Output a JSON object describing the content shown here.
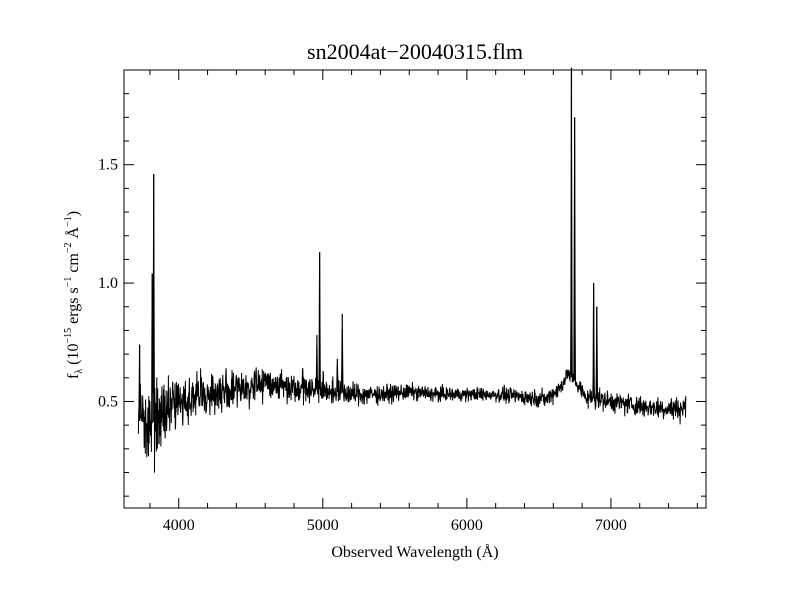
{
  "chart_data": {
    "type": "line",
    "title": "sn2004at−20040315.flm",
    "xlabel": "Observed Wavelength (Å)",
    "ylabel": {
      "prefix": "f",
      "subscript": "λ",
      "open": " (10",
      "exp1": "−15",
      "mid1": " ergs s",
      "exp2": "−1",
      "mid2": " cm",
      "exp3": "−2",
      "mid3": " Å",
      "exp4": "−1",
      "close": ")"
    },
    "xlim": [
      3620,
      7660
    ],
    "ylim": [
      0.05,
      1.9
    ],
    "x_ticks": [
      4000,
      5000,
      6000,
      7000
    ],
    "x_tick_labels": [
      "4000",
      "5000",
      "6000",
      "7000"
    ],
    "x_minor_step": 200,
    "y_ticks": [
      0.5,
      1.0,
      1.5
    ],
    "y_tick_labels": [
      "0.5",
      "1.0",
      "1.5"
    ],
    "y_minor_step": 0.1,
    "grid": false,
    "line_color": "#000000",
    "series": [
      {
        "x_range": [
          3720,
          7520
        ],
        "continuum": [
          [
            3720,
            0.42
          ],
          [
            3800,
            0.4
          ],
          [
            3900,
            0.45
          ],
          [
            4000,
            0.5
          ],
          [
            4200,
            0.53
          ],
          [
            4400,
            0.55
          ],
          [
            4600,
            0.58
          ],
          [
            4800,
            0.56
          ],
          [
            5000,
            0.55
          ],
          [
            5200,
            0.53
          ],
          [
            5400,
            0.53
          ],
          [
            5600,
            0.54
          ],
          [
            5800,
            0.53
          ],
          [
            6000,
            0.53
          ],
          [
            6200,
            0.53
          ],
          [
            6400,
            0.52
          ],
          [
            6550,
            0.51
          ],
          [
            6650,
            0.56
          ],
          [
            6700,
            0.62
          ],
          [
            6760,
            0.58
          ],
          [
            6820,
            0.52
          ],
          [
            6900,
            0.51
          ],
          [
            7000,
            0.5
          ],
          [
            7200,
            0.48
          ],
          [
            7400,
            0.47
          ],
          [
            7520,
            0.47
          ]
        ],
        "noise": [
          [
            3720,
            0.14
          ],
          [
            3850,
            0.12
          ],
          [
            4000,
            0.07
          ],
          [
            4300,
            0.06
          ],
          [
            4600,
            0.05
          ],
          [
            5000,
            0.04
          ],
          [
            5500,
            0.025
          ],
          [
            6000,
            0.02
          ],
          [
            6500,
            0.025
          ],
          [
            7000,
            0.03
          ],
          [
            7520,
            0.035
          ]
        ],
        "peaks": [
          [
            3728,
            0.74
          ],
          [
            3750,
            0.49
          ],
          [
            3773,
            0.4
          ],
          [
            3816,
            1.04
          ],
          [
            3826,
            1.46
          ],
          [
            4860,
            0.64
          ],
          [
            4959,
            0.78
          ],
          [
            4978,
            1.13
          ],
          [
            5101,
            0.68
          ],
          [
            5135,
            0.87
          ],
          [
            6726,
            1.91
          ],
          [
            6748,
            1.7
          ],
          [
            6880,
            1.0
          ],
          [
            6902,
            0.9
          ]
        ]
      }
    ]
  }
}
